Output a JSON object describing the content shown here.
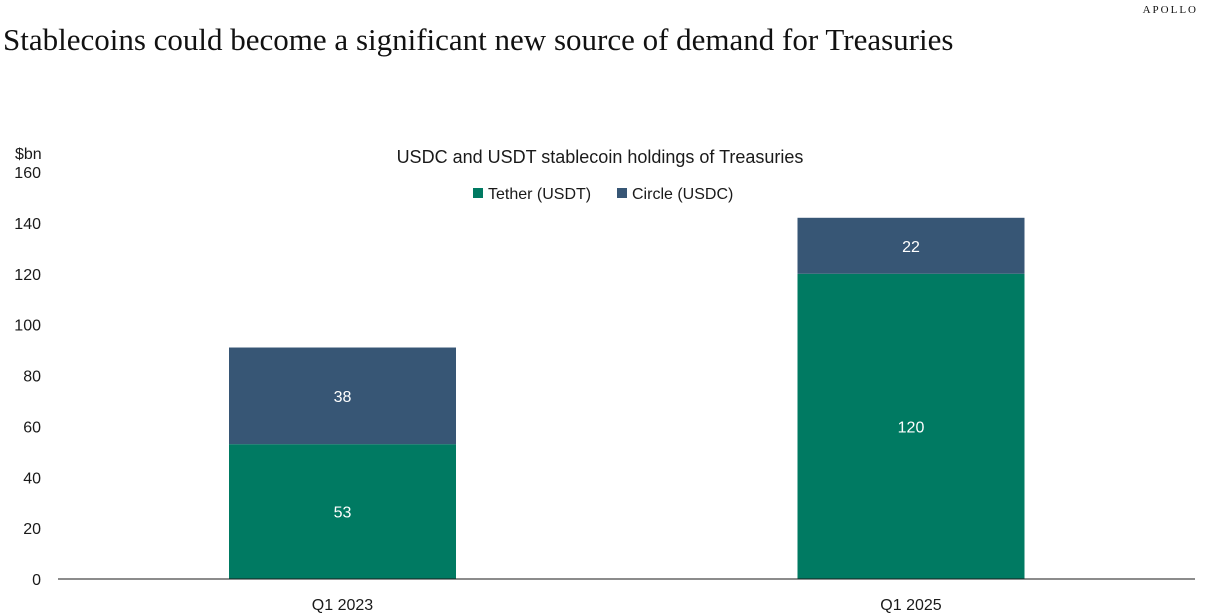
{
  "brand": "APOLLO",
  "page_title": "Stablecoins could become a significant new source of  demand for Treasuries",
  "colors": {
    "tether": "#007a62",
    "circle": "#375675",
    "axis": "#1a1a1a"
  },
  "chart_data": {
    "type": "bar",
    "stacked": true,
    "title": "USDC and USDT stablecoin holdings of Treasuries",
    "ylabel": "$bn",
    "xlabel": "",
    "ylim": [
      0,
      160
    ],
    "yticks": [
      0,
      20,
      40,
      60,
      80,
      100,
      120,
      140,
      160
    ],
    "categories": [
      "Q1 2023",
      "Q1 2025"
    ],
    "legend_position": "top-center",
    "grid": false,
    "series": [
      {
        "name": "Tether (USDT)",
        "values": [
          53,
          120
        ],
        "color": "#007a62"
      },
      {
        "name": "Circle (USDC)",
        "values": [
          38,
          22
        ],
        "color": "#375675"
      }
    ]
  }
}
